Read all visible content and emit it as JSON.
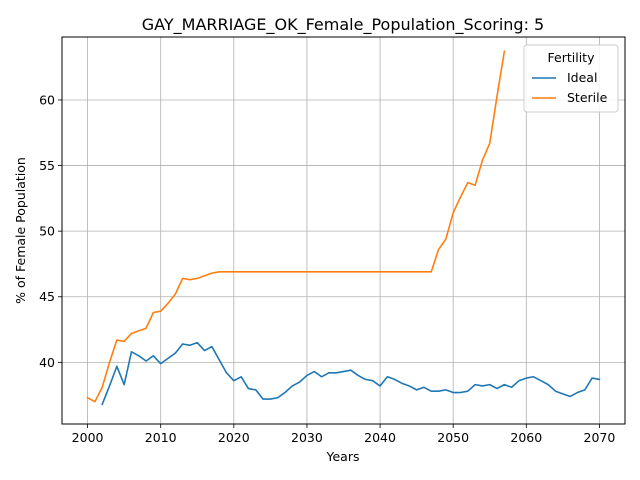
{
  "chart_data": {
    "type": "line",
    "title": "GAY_MARRIAGE_OK_Female_Population_Scoring: 5",
    "xlabel": "Years",
    "ylabel": "% of Female Population",
    "xlim": [
      1996.5,
      2073.5
    ],
    "ylim": [
      35.3,
      64.8
    ],
    "xticks": [
      2000,
      2010,
      2020,
      2030,
      2040,
      2050,
      2060,
      2070
    ],
    "yticks": [
      40,
      45,
      50,
      55,
      60
    ],
    "grid": true,
    "legend": {
      "title": "Fertility",
      "placement": "top-right"
    },
    "series": [
      {
        "name": "Ideal",
        "color": "#1f77b4",
        "x": [
          2002,
          2003,
          2004,
          2005,
          2006,
          2007,
          2008,
          2009,
          2010,
          2011,
          2012,
          2013,
          2014,
          2015,
          2016,
          2017,
          2018,
          2019,
          2020,
          2021,
          2022,
          2023,
          2024,
          2025,
          2026,
          2027,
          2028,
          2029,
          2030,
          2031,
          2032,
          2033,
          2034,
          2035,
          2036,
          2037,
          2038,
          2039,
          2040,
          2041,
          2042,
          2043,
          2044,
          2045,
          2046,
          2047,
          2048,
          2049,
          2050,
          2051,
          2052,
          2053,
          2054,
          2055,
          2056,
          2057,
          2058,
          2059,
          2060,
          2061,
          2062,
          2063,
          2064,
          2065,
          2066,
          2067,
          2068,
          2069,
          2070
        ],
        "y": [
          36.8,
          38.2,
          39.7,
          38.3,
          40.8,
          40.5,
          40.1,
          40.5,
          39.9,
          40.3,
          40.7,
          41.4,
          41.3,
          41.5,
          40.9,
          41.2,
          40.2,
          39.2,
          38.6,
          38.9,
          38.0,
          37.9,
          37.2,
          37.2,
          37.3,
          37.7,
          38.2,
          38.5,
          39.0,
          39.3,
          38.9,
          39.2,
          39.2,
          39.3,
          39.4,
          39.0,
          38.7,
          38.6,
          38.2,
          38.9,
          38.7,
          38.4,
          38.2,
          37.9,
          38.1,
          37.8,
          37.8,
          37.9,
          37.7,
          37.7,
          37.8,
          38.3,
          38.2,
          38.3,
          38.0,
          38.3,
          38.1,
          38.6,
          38.8,
          38.9,
          38.6,
          38.3,
          37.8,
          37.6,
          37.4,
          37.7,
          37.9,
          38.8,
          38.7
        ]
      },
      {
        "name": "Sterile",
        "color": "#ff7f0e",
        "x": [
          2000,
          2001,
          2002,
          2003,
          2004,
          2005,
          2006,
          2007,
          2008,
          2009,
          2010,
          2011,
          2012,
          2013,
          2014,
          2015,
          2016,
          2017,
          2018,
          2019,
          2020,
          2021,
          2022,
          2023,
          2024,
          2025,
          2026,
          2027,
          2028,
          2029,
          2030,
          2031,
          2032,
          2033,
          2034,
          2035,
          2036,
          2037,
          2038,
          2039,
          2040,
          2041,
          2042,
          2043,
          2044,
          2045,
          2046,
          2047,
          2048,
          2049,
          2050,
          2051,
          2052,
          2053,
          2054,
          2055,
          2056,
          2057
        ],
        "y": [
          37.3,
          37.0,
          38.1,
          40.0,
          41.7,
          41.6,
          42.2,
          42.4,
          42.6,
          43.8,
          43.9,
          44.5,
          45.2,
          46.4,
          46.3,
          46.4,
          46.6,
          46.8,
          46.9,
          46.9,
          46.9,
          46.9,
          46.9,
          46.9,
          46.9,
          46.9,
          46.9,
          46.9,
          46.9,
          46.9,
          46.9,
          46.9,
          46.9,
          46.9,
          46.9,
          46.9,
          46.9,
          46.9,
          46.9,
          46.9,
          46.9,
          46.9,
          46.9,
          46.9,
          46.9,
          46.9,
          46.9,
          46.9,
          48.6,
          49.4,
          51.4,
          52.6,
          53.7,
          53.5,
          55.4,
          56.7,
          60.3,
          63.7
        ]
      }
    ]
  }
}
